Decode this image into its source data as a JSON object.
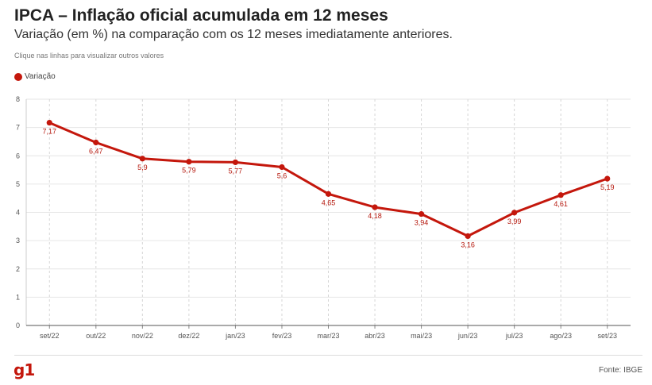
{
  "title": "IPCA – Inflação oficial acumulada em 12 meses",
  "subtitle": "Variação (em %) na comparação com os 12 meses imediatamente anteriores.",
  "hint": "Clique nas linhas para visualizar outros valores",
  "legend": {
    "label": "Variação",
    "color": "#c4170c"
  },
  "footer": {
    "logo": "g1",
    "source": "Fonte: IBGE"
  },
  "chart_data": {
    "type": "line",
    "categories": [
      "set/22",
      "out/22",
      "nov/22",
      "dez/22",
      "jan/23",
      "fev/23",
      "mar/23",
      "abr/23",
      "mai/23",
      "jun/23",
      "jul/23",
      "ago/23",
      "set/23"
    ],
    "series": [
      {
        "name": "Variação",
        "values": [
          7.17,
          6.47,
          5.9,
          5.79,
          5.77,
          5.6,
          4.65,
          4.18,
          3.94,
          3.16,
          3.99,
          4.61,
          5.19
        ],
        "labels": [
          "7,17",
          "6,47",
          "5,9",
          "5,79",
          "5,77",
          "5,6",
          "4,65",
          "4,18",
          "3,94",
          "3,16",
          "3,99",
          "4,61",
          "5,19"
        ]
      }
    ],
    "ylim": [
      0,
      8
    ],
    "yticks": [
      0,
      1,
      2,
      3,
      4,
      5,
      6,
      7,
      8
    ],
    "grid": true
  }
}
